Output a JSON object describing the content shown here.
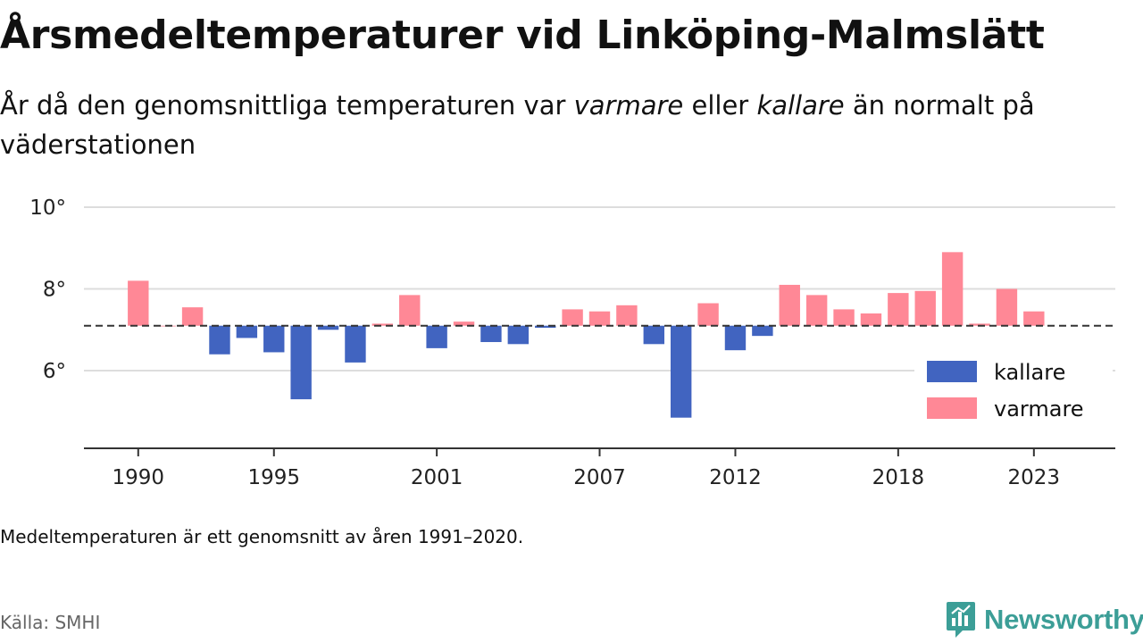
{
  "title": "Årsmedeltemperaturer vid Linköping-Malmslätt",
  "subtitle": {
    "part1": "År då den genomsnittliga temperaturen var ",
    "emph1": "varmare",
    "part2": " eller ",
    "emph2": "kallare",
    "part3": " än normalt på väderstationen"
  },
  "note": "Medeltemperaturen är ett genomsnitt av åren 1991–2020.",
  "source": "Källa: SMHI",
  "brand": {
    "name": "Newsworthy",
    "icon": "newsworthy-logo-icon"
  },
  "colors": {
    "kallare": "#4164c0",
    "varmare": "#ff8896",
    "grid": "#dddddd",
    "axis": "#333333",
    "baseline": "#333333"
  },
  "chart_data": {
    "type": "bar",
    "baseline": 7.1,
    "ylim": [
      4.1,
      10.0
    ],
    "yticks": [
      6,
      8,
      10
    ],
    "ytick_labels": [
      "6°",
      "8°",
      "10°"
    ],
    "xticks": [
      1990,
      1995,
      2001,
      2007,
      2012,
      2018,
      2023
    ],
    "xtick_labels": [
      "1990",
      "1995",
      "2001",
      "2007",
      "2012",
      "2018",
      "2023"
    ],
    "x_range": [
      1988,
      2026
    ],
    "grid": "horizontal",
    "legend": {
      "placement": "bottom-right",
      "items": [
        {
          "key": "kallare",
          "label": "kallare"
        },
        {
          "key": "varmare",
          "label": "varmare"
        }
      ]
    },
    "years": [
      1990,
      1991,
      1992,
      1993,
      1994,
      1995,
      1996,
      1997,
      1998,
      1999,
      2000,
      2001,
      2002,
      2003,
      2004,
      2005,
      2006,
      2007,
      2008,
      2009,
      2010,
      2011,
      2012,
      2013,
      2014,
      2015,
      2016,
      2017,
      2018,
      2019,
      2020,
      2021,
      2022,
      2023
    ],
    "values": [
      8.2,
      7.1,
      7.55,
      6.4,
      6.8,
      6.45,
      5.3,
      7.0,
      6.2,
      7.15,
      7.85,
      6.55,
      7.2,
      6.7,
      6.65,
      7.05,
      7.5,
      7.45,
      7.6,
      6.65,
      4.85,
      7.65,
      6.5,
      6.85,
      8.1,
      7.85,
      7.5,
      7.4,
      7.9,
      7.95,
      8.9,
      7.15,
      8.0,
      7.45
    ]
  }
}
